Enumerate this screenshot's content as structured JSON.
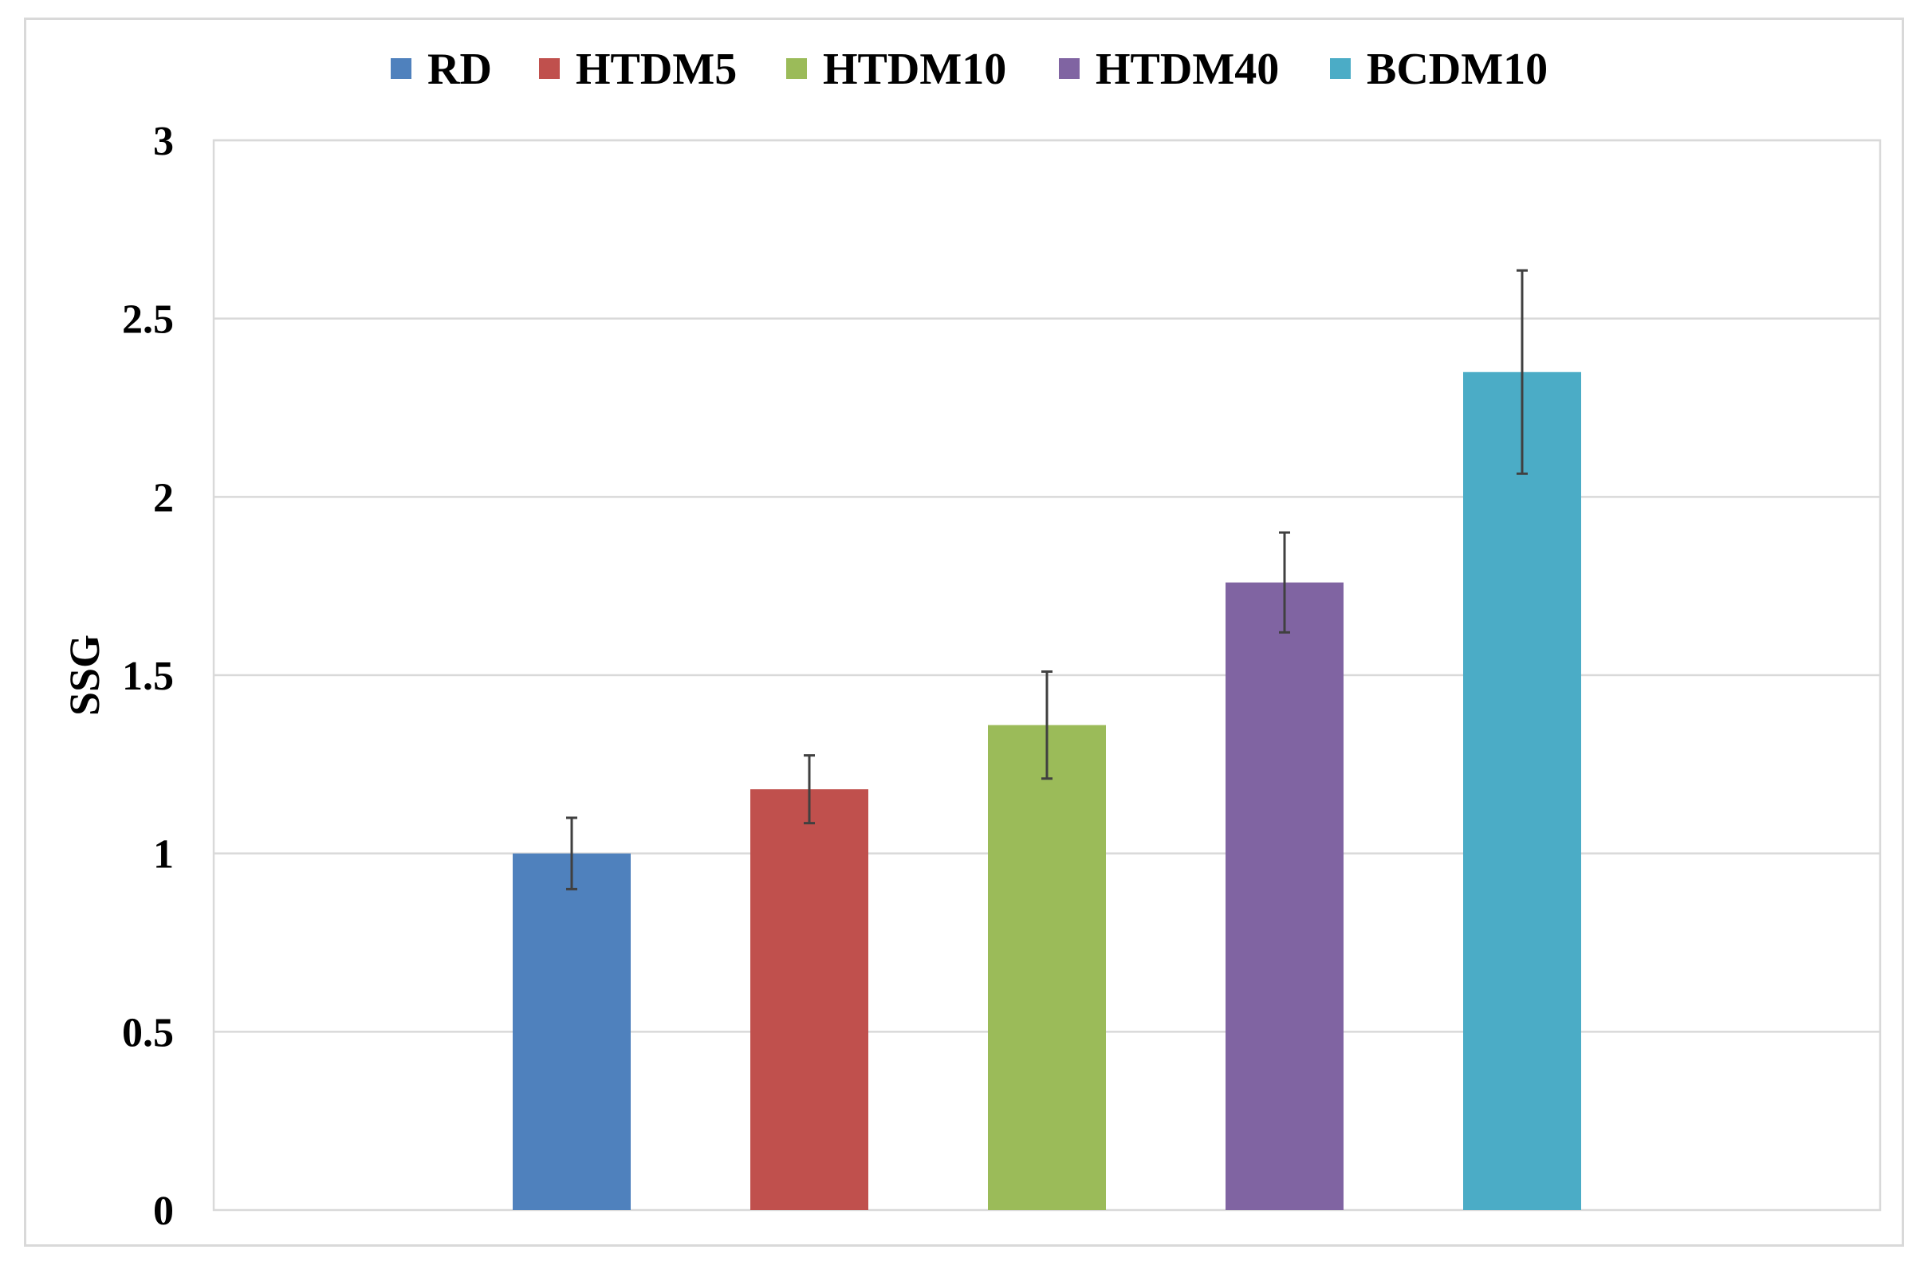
{
  "chart_data": {
    "type": "bar",
    "title": "",
    "xlabel": "",
    "ylabel": "SSG",
    "ylim": [
      0,
      3
    ],
    "yticks": [
      "0",
      "0.5",
      "1",
      "1.5",
      "2",
      "2.5",
      "3"
    ],
    "grid": true,
    "legend_position": "top",
    "series": [
      {
        "name": "RD",
        "value": 1.0,
        "error": 0.1,
        "color": "#4F81BD"
      },
      {
        "name": "HTDM5",
        "value": 1.18,
        "error": 0.095,
        "color": "#C0504D"
      },
      {
        "name": "HTDM10",
        "value": 1.36,
        "error": 0.15,
        "color": "#9BBB59"
      },
      {
        "name": "HTDM40",
        "value": 1.76,
        "error": 0.14,
        "color": "#8064A2"
      },
      {
        "name": "BCDM10",
        "value": 2.35,
        "error": 0.285,
        "color": "#4BACC6"
      }
    ]
  }
}
